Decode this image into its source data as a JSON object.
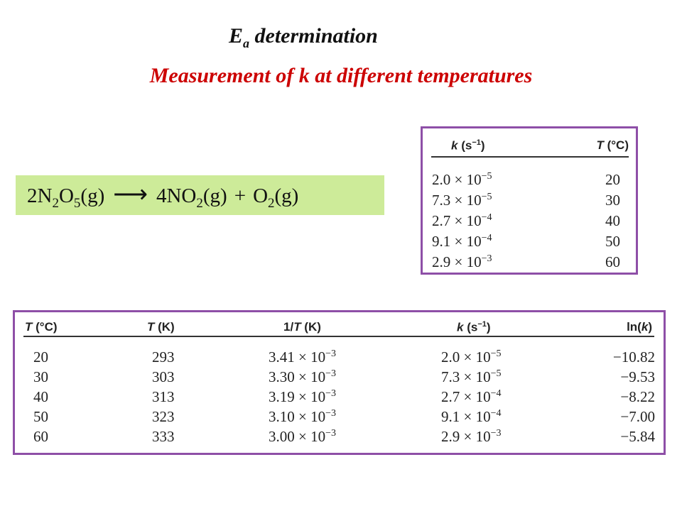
{
  "header": {
    "title": [
      "E",
      "a",
      " determination"
    ],
    "subtitle": "Measurement of k at different temperatures"
  },
  "equation": [
    "2N",
    "2",
    "O",
    "5",
    "(g)",
    "⟶",
    "4NO",
    "2",
    "(g)",
    "+",
    "O",
    "2",
    "(g)"
  ],
  "small_table": {
    "headers": [
      [
        "k",
        " (s",
        "−1",
        ")"
      ],
      [
        "T",
        " (°C)"
      ]
    ],
    "rows": [
      [
        [
          "2.0 × 10",
          "−5"
        ],
        "20"
      ],
      [
        [
          "7.3 × 10",
          "−5"
        ],
        "30"
      ],
      [
        [
          "2.7 × 10",
          "−4"
        ],
        "40"
      ],
      [
        [
          "9.1 × 10",
          "−4"
        ],
        "50"
      ],
      [
        [
          "2.9 × 10",
          "−3"
        ],
        "60"
      ]
    ]
  },
  "big_table": {
    "headers": [
      [
        "T",
        " (°C)"
      ],
      [
        "T",
        " (K)"
      ],
      [
        "1/",
        "T",
        " (K)"
      ],
      [
        "k",
        " (s",
        "−1",
        ")"
      ],
      [
        "ln(",
        "k",
        ")"
      ]
    ],
    "rows": [
      [
        "20",
        "293",
        [
          "3.41 × 10",
          "−3"
        ],
        [
          "2.0 × 10",
          "−5"
        ],
        "−10.82"
      ],
      [
        "30",
        "303",
        [
          "3.30 × 10",
          "−3"
        ],
        [
          "7.3 × 10",
          "−5"
        ],
        "−9.53"
      ],
      [
        "40",
        "313",
        [
          "3.19 × 10",
          "−3"
        ],
        [
          "2.7 × 10",
          "−4"
        ],
        "−8.22"
      ],
      [
        "50",
        "323",
        [
          "3.10 × 10",
          "−3"
        ],
        [
          "9.1 × 10",
          "−4"
        ],
        "−7.00"
      ],
      [
        "60",
        "333",
        [
          "3.00 × 10",
          "−3"
        ],
        [
          "2.9 × 10",
          "−3"
        ],
        "−5.84"
      ]
    ]
  }
}
